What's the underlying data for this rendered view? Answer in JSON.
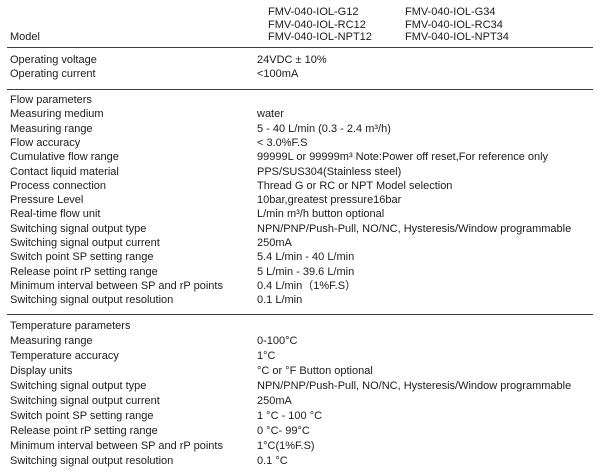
{
  "colors": {
    "background": "#ffffff",
    "text": "#1c1c1c",
    "rule": "#3d3d3d"
  },
  "header": {
    "model_label": "Model",
    "models_col1": [
      "FMV-040-IOL-G12",
      "FMV-040-IOL-RC12",
      "FMV-040-IOL-NPT12"
    ],
    "models_col2": [
      "FMV-040-IOL-G34",
      "FMV-040-IOL-RC34",
      "FMV-040-IOL-NPT34"
    ]
  },
  "power": {
    "rows": [
      {
        "label": "Operating voltage",
        "value": "24VDC ± 10%"
      },
      {
        "label": "Operating current",
        "value": "<100mA"
      }
    ]
  },
  "flow": {
    "section_title": "Flow parameters",
    "rows": [
      {
        "label": "Measuring medium",
        "value": "water"
      },
      {
        "label": "Measuring range",
        "value": "5 - 40 L/min (0.3 - 2.4 m³/h)"
      },
      {
        "label": "Flow accuracy",
        "value": "< 3.0%F.S"
      },
      {
        "label": "Cumulative flow range",
        "value": "99999L or 99999m³ Note:Power off reset,For reference only"
      },
      {
        "label": "Contact liquid material",
        "value": "PPS/SUS304(Stainless steel)"
      },
      {
        "label": "Process connection",
        "value": "Thread G or RC or NPT Model selection"
      },
      {
        "label": "Pressure Level",
        "value": "10bar,greatest pressure16bar"
      },
      {
        "label": "Real-time flow unit",
        "value": "L/min m³/h button optional"
      },
      {
        "label": "Switching signal output type",
        "value": "NPN/PNP/Push-Pull, NO/NC, Hysteresis/Window programmable"
      },
      {
        "label": "Switching signal output current",
        "value": "250mA"
      },
      {
        "label": "Switch point SP setting range",
        "value": "5.4 L/min - 40 L/min"
      },
      {
        "label": "Release point rP setting range",
        "value": "5 L/min - 39.6 L/min"
      },
      {
        "label": "Minimum interval between SP and rP points",
        "value": "0.4 L/min（1%F.S）"
      },
      {
        "label": "Switching signal output resolution",
        "value": "0.1 L/min"
      }
    ]
  },
  "temperature": {
    "section_title": "Temperature parameters",
    "rows": [
      {
        "label": "Measuring range",
        "value": "0-100°C"
      },
      {
        "label": "Temperature accuracy",
        "value": "1°C"
      },
      {
        "label": "Display units",
        "value": "°C  or °F Button optional"
      },
      {
        "label": "Switching signal output type",
        "value": "NPN/PNP/Push-Pull, NO/NC, Hysteresis/Window programmable"
      },
      {
        "label": "Switching signal output current",
        "value": "250mA"
      },
      {
        "label": "Switch point SP setting range",
        "value": "1 °C - 100 °C"
      },
      {
        "label": "Release point rP setting range",
        "value": "0 °C- 99°C"
      },
      {
        "label": "Minimum interval between SP and rP points",
        "value": "1°C(1%F.S)"
      },
      {
        "label": "Switching signal output resolution",
        "value": "0.1 °C"
      }
    ]
  }
}
